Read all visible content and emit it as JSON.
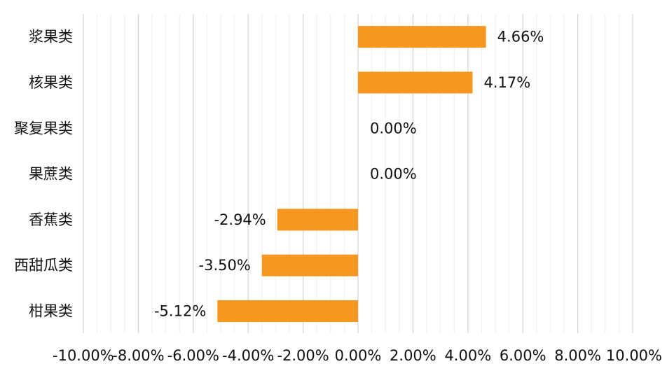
{
  "chart_data": {
    "type": "bar",
    "orientation": "horizontal",
    "categories": [
      "浆果类",
      "核果类",
      "聚复果类",
      "果蔗类",
      "香蕉类",
      "西甜瓜类",
      "柑果类"
    ],
    "values": [
      4.66,
      4.17,
      0.0,
      0.0,
      -2.94,
      -3.5,
      -5.12
    ],
    "value_labels": [
      "4.66%",
      "4.17%",
      "0.00%",
      "0.00%",
      "-2.94%",
      "-3.50%",
      "-5.12%"
    ],
    "xlim": [
      -10,
      10
    ],
    "x_ticks": [
      -10,
      -8,
      -6,
      -4,
      -2,
      0,
      2,
      4,
      6,
      8,
      10
    ],
    "x_tick_labels": [
      "-10.00%",
      "-8.00%",
      "-6.00%",
      "-4.00%",
      "-2.00%",
      "0.00%",
      "2.00%",
      "4.00%",
      "6.00%",
      "8.00%",
      "10.00%"
    ],
    "x_minor_step": 0.5,
    "grid": true,
    "bar_color": "#f7961e",
    "title": "",
    "xlabel": "",
    "ylabel": ""
  }
}
